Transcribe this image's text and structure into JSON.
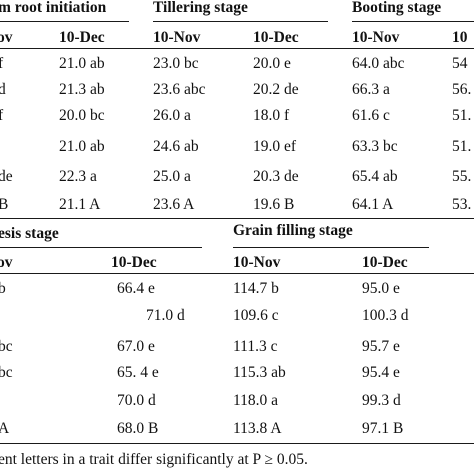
{
  "table_top": {
    "stage_headers": [
      "m root initiation",
      "Tillering stage",
      "Booting stage"
    ],
    "date_headers": [
      "ov",
      "10-Dec",
      "10-Nov",
      "10-Dec",
      "10-Nov",
      "10"
    ],
    "rows": [
      [
        "f",
        "21.0 ab",
        "23.0 bc",
        "20.0 e",
        "64.0 abc",
        "54"
      ],
      [
        "d",
        "21.3 ab",
        "23.6 abc",
        "20.2 de",
        "66.3 a",
        "56."
      ],
      [
        "f",
        "20.0 bc",
        "26.0 a",
        "18.0 f",
        "61.6 c",
        "51."
      ],
      [
        "",
        "21.0 ab",
        "24.6 ab",
        "19.0 ef",
        "63.3 bc",
        "51."
      ],
      [
        "de",
        "22.3 a",
        "25.0 a",
        "20.3 de",
        "65.4 ab",
        "55."
      ],
      [
        "B",
        "21.1 A",
        "23.6 A",
        "19.6 B",
        "64.1 A",
        "53."
      ]
    ]
  },
  "table_bottom": {
    "stage_headers": [
      "esis stage",
      "Grain filling stage"
    ],
    "date_headers": [
      "ov",
      "10-Dec",
      "10-Nov",
      "10-Dec"
    ],
    "rows": [
      [
        "b",
        "66.4 e",
        "114.7 b",
        "95.0 e"
      ],
      [
        "",
        "71.0 d",
        "109.6 c",
        "100.3 d"
      ],
      [
        "bc",
        "67.0 e",
        "111.3 c",
        "95.7 e"
      ],
      [
        "bc",
        "65. 4 e",
        "115.3 ab",
        "95.4 e"
      ],
      [
        "",
        "70.0 d",
        "118.0 a",
        "99.3 d"
      ],
      [
        "A",
        "68.0 B",
        "113.8 A",
        "97.1 B"
      ]
    ]
  },
  "footnote": "ent letters in a trait differ significantly at P ≥ 0.05."
}
